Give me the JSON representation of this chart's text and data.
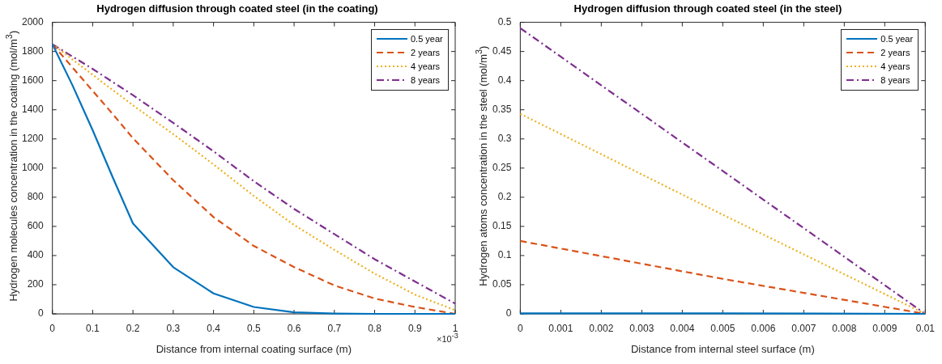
{
  "chart_data": [
    {
      "type": "line",
      "title": "Hydrogen diffusion through coated steel (in the coating)",
      "xlabel": "Distance from internal coating surface (m)",
      "ylabel": "Hydrogen molecules concentration in the coating (mol/m$^{3}$)",
      "x": [
        0,
        0.05,
        0.1,
        0.15,
        0.2,
        0.3,
        0.4,
        0.5,
        0.6,
        0.7,
        0.8,
        0.9,
        1
      ],
      "series": [
        {
          "name": "0.5 year",
          "color": "#0072bd",
          "line_style": "solid",
          "values": [
            1850,
            1567,
            1260,
            935,
            620,
            320,
            140,
            47,
            10,
            2,
            0,
            0,
            0
          ]
        },
        {
          "name": "2 years",
          "color": "#d95319",
          "line_style": "dashed",
          "values": [
            1850,
            1690,
            1530,
            1370,
            1205,
            917,
            664,
            466,
            321,
            195,
            105,
            47,
            0
          ]
        },
        {
          "name": "4 years",
          "color": "#edb120",
          "line_style": "dotted",
          "values": [
            1850,
            1745,
            1640,
            1535,
            1431,
            1233,
            1025,
            809,
            610,
            439,
            276,
            132,
            25
          ]
        },
        {
          "name": "8 years",
          "color": "#7e2f8e",
          "line_style": "dashdot",
          "values": [
            1850,
            1765,
            1680,
            1590,
            1500,
            1310,
            1115,
            910,
            720,
            547,
            375,
            222,
            70
          ]
        }
      ],
      "xlim": [
        0,
        1
      ],
      "xticks": [
        0,
        0.1,
        0.2,
        0.3,
        0.4,
        0.5,
        0.6,
        0.7,
        0.8,
        0.9,
        1
      ],
      "ylim": [
        0,
        2000
      ],
      "yticks": [
        0,
        200,
        400,
        600,
        800,
        1000,
        1200,
        1400,
        1600,
        1800,
        2000
      ],
      "legend": "top right",
      "annotations": [
        "×10$^{-3}$"
      ]
    },
    {
      "type": "line",
      "title": "Hydrogen diffusion through coated steel (in the steel)",
      "xlabel": "Distance from internal steel surface (m)",
      "ylabel": "Hydrogen atoms concentration in the steel (mol/m$^{3}$)",
      "x": [
        0,
        0.005,
        0.01
      ],
      "series": [
        {
          "name": "0.5 year",
          "color": "#0072bd",
          "line_style": "solid",
          "values": [
            0.001,
            0.001,
            0
          ]
        },
        {
          "name": "2 years",
          "color": "#d95319",
          "line_style": "dashed",
          "values": [
            0.125,
            0.06,
            0
          ]
        },
        {
          "name": "4 years",
          "color": "#edb120",
          "line_style": "dotted",
          "values": [
            0.343,
            0.17,
            0
          ]
        },
        {
          "name": "8 years",
          "color": "#7e2f8e",
          "line_style": "dashdot",
          "values": [
            0.49,
            0.245,
            0
          ]
        }
      ],
      "xlim": [
        0,
        0.01
      ],
      "xticks": [
        0,
        0.001,
        0.002,
        0.003,
        0.004,
        0.005,
        0.006,
        0.007,
        0.008,
        0.009,
        0.01
      ],
      "ylim": [
        0,
        0.5
      ],
      "yticks": [
        0,
        0.05,
        0.1,
        0.15,
        0.2,
        0.25,
        0.3,
        0.35,
        0.4,
        0.45,
        0.5
      ],
      "legend": "top right"
    }
  ]
}
